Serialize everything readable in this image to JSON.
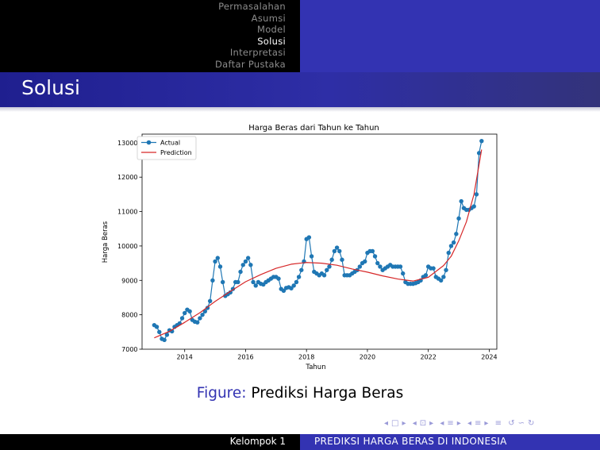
{
  "nav": {
    "items": [
      {
        "label": "Permasalahan",
        "active": false
      },
      {
        "label": "Asumsi",
        "active": false
      },
      {
        "label": "Model",
        "active": false
      },
      {
        "label": "Solusi",
        "active": true
      },
      {
        "label": "Interpretasi",
        "active": false
      },
      {
        "label": "Daftar Pustaka",
        "active": false
      }
    ]
  },
  "frame": {
    "title": "Solusi"
  },
  "caption": {
    "label": "Figure:",
    "text": "Prediksi Harga Beras"
  },
  "nav_symbols": [
    "◂",
    "□",
    "▸",
    "◂",
    "⊡",
    "▸",
    "◂",
    "≡",
    "▸",
    "◂",
    "≡",
    "▸",
    "≡",
    "↺",
    "∽",
    "↻"
  ],
  "footer": {
    "author": "Kelompok 1",
    "title": "PREDIKSI HARGA BERAS DI INDONESIA"
  },
  "colors": {
    "accent": "#3333b2",
    "actual": "#1f77b4",
    "prediction": "#d62728",
    "nav_inactive": "#8c8c8c"
  },
  "chart_data": {
    "type": "line",
    "title": "Harga Beras dari Tahun ke Tahun",
    "xlabel": "Tahun",
    "ylabel": "Harga Beras",
    "xlim": [
      2012.6,
      2024.25
    ],
    "ylim": [
      7000,
      13250
    ],
    "xticks": [
      2014,
      2016,
      2018,
      2020,
      2022,
      2024
    ],
    "yticks": [
      7000,
      8000,
      9000,
      10000,
      11000,
      12000,
      13000
    ],
    "legend": "top-left",
    "grid": false,
    "series": [
      {
        "name": "Actual",
        "style": "line-marker",
        "x": [
          2013.0,
          2013.083,
          2013.167,
          2013.25,
          2013.333,
          2013.417,
          2013.5,
          2013.583,
          2013.667,
          2013.75,
          2013.833,
          2013.917,
          2014.0,
          2014.083,
          2014.167,
          2014.25,
          2014.333,
          2014.417,
          2014.5,
          2014.583,
          2014.667,
          2014.75,
          2014.833,
          2014.917,
          2015.0,
          2015.083,
          2015.167,
          2015.25,
          2015.333,
          2015.417,
          2015.5,
          2015.583,
          2015.667,
          2015.75,
          2015.833,
          2015.917,
          2016.0,
          2016.083,
          2016.167,
          2016.25,
          2016.333,
          2016.417,
          2016.5,
          2016.583,
          2016.667,
          2016.75,
          2016.833,
          2016.917,
          2017.0,
          2017.083,
          2017.167,
          2017.25,
          2017.333,
          2017.417,
          2017.5,
          2017.583,
          2017.667,
          2017.75,
          2017.833,
          2017.917,
          2018.0,
          2018.083,
          2018.167,
          2018.25,
          2018.333,
          2018.417,
          2018.5,
          2018.583,
          2018.667,
          2018.75,
          2018.833,
          2018.917,
          2019.0,
          2019.083,
          2019.167,
          2019.25,
          2019.333,
          2019.417,
          2019.5,
          2019.583,
          2019.667,
          2019.75,
          2019.833,
          2019.917,
          2020.0,
          2020.083,
          2020.167,
          2020.25,
          2020.333,
          2020.417,
          2020.5,
          2020.583,
          2020.667,
          2020.75,
          2020.833,
          2020.917,
          2021.0,
          2021.083,
          2021.167,
          2021.25,
          2021.333,
          2021.417,
          2021.5,
          2021.583,
          2021.667,
          2021.75,
          2021.833,
          2021.917,
          2022.0,
          2022.083,
          2022.167,
          2022.25,
          2022.333,
          2022.417,
          2022.5,
          2022.583,
          2022.667,
          2022.75,
          2022.833,
          2022.917,
          2023.0,
          2023.083,
          2023.167,
          2023.25,
          2023.333,
          2023.417,
          2023.5,
          2023.583,
          2023.667,
          2023.75
        ],
        "y": [
          7700,
          7650,
          7500,
          7300,
          7270,
          7420,
          7550,
          7520,
          7650,
          7700,
          7750,
          7900,
          8050,
          8150,
          8100,
          7850,
          7800,
          7780,
          7900,
          8000,
          8100,
          8200,
          8400,
          9000,
          9550,
          9650,
          9400,
          8950,
          8550,
          8600,
          8650,
          8750,
          8950,
          8950,
          9250,
          9450,
          9550,
          9650,
          9450,
          8950,
          8850,
          8950,
          8900,
          8880,
          8950,
          9000,
          9050,
          9100,
          9100,
          9050,
          8750,
          8700,
          8780,
          8800,
          8770,
          8850,
          8950,
          9100,
          9300,
          9550,
          10200,
          10250,
          9700,
          9250,
          9200,
          9150,
          9200,
          9150,
          9300,
          9400,
          9600,
          9850,
          9950,
          9850,
          9600,
          9150,
          9150,
          9150,
          9200,
          9250,
          9300,
          9400,
          9500,
          9550,
          9800,
          9850,
          9850,
          9700,
          9500,
          9400,
          9300,
          9350,
          9400,
          9450,
          9400,
          9400,
          9400,
          9400,
          9200,
          8950,
          8900,
          8900,
          8900,
          8920,
          8950,
          9000,
          9100,
          9150,
          9400,
          9350,
          9350,
          9100,
          9050,
          9000,
          9100,
          9300,
          9800,
          10000,
          10100,
          10350,
          10800,
          11300,
          11100,
          11050,
          11050,
          11100,
          11150,
          11500,
          12700,
          13050
        ]
      },
      {
        "name": "Prediction",
        "style": "line",
        "x": [
          2013.0,
          2013.5,
          2014.0,
          2014.5,
          2015.0,
          2015.5,
          2016.0,
          2016.5,
          2017.0,
          2017.5,
          2018.0,
          2018.5,
          2019.0,
          2019.5,
          2020.0,
          2020.5,
          2021.0,
          2021.5,
          2022.0,
          2022.5,
          2022.75,
          2023.0,
          2023.25,
          2023.5,
          2023.75
        ],
        "y": [
          7330,
          7520,
          7780,
          8060,
          8390,
          8680,
          8960,
          9170,
          9350,
          9470,
          9520,
          9500,
          9440,
          9330,
          9240,
          9130,
          9040,
          8980,
          9090,
          9430,
          9700,
          10150,
          10700,
          11500,
          12800
        ]
      }
    ]
  }
}
